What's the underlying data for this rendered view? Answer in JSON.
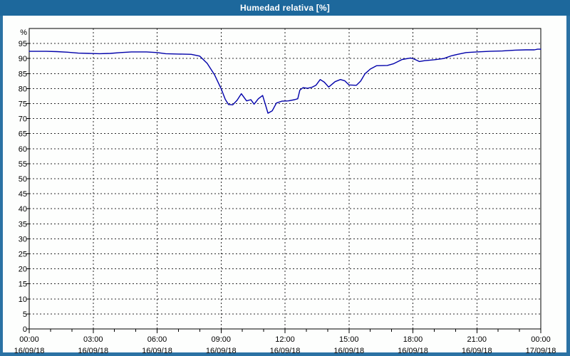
{
  "window": {
    "title": "Humedad relativa [%]"
  },
  "colors": {
    "titlebar_bg": "#1d689c",
    "frame_bg": "#2b72a4",
    "panel_bg": "#fdfefd",
    "title_text": "#ffffff",
    "axis_text": "#000000",
    "plot_border": "#000000",
    "gridline": "#2a2a2a",
    "line": "#0000aa"
  },
  "chart_data": {
    "type": "line",
    "title": "Humedad relativa [%]",
    "ylabel": "%",
    "xlabel": "",
    "ylim": [
      0,
      100
    ],
    "ytick_step": 5,
    "yticks": [
      0,
      5,
      10,
      15,
      20,
      25,
      30,
      35,
      40,
      45,
      50,
      55,
      60,
      65,
      70,
      75,
      80,
      85,
      90,
      95
    ],
    "xlim_hours": [
      0,
      24
    ],
    "minor_xtick_every_hours": 1,
    "grid": true,
    "legend_position": "none",
    "xticks": [
      {
        "hour": 0,
        "time": "00:00",
        "date": "16/09/18"
      },
      {
        "hour": 3,
        "time": "03:00",
        "date": "16/09/18"
      },
      {
        "hour": 6,
        "time": "06:00",
        "date": "16/09/18"
      },
      {
        "hour": 9,
        "time": "09:00",
        "date": "16/09/18"
      },
      {
        "hour": 12,
        "time": "12:00",
        "date": "16/09/18"
      },
      {
        "hour": 15,
        "time": "15:00",
        "date": "16/09/18"
      },
      {
        "hour": 18,
        "time": "18:00",
        "date": "16/09/18"
      },
      {
        "hour": 21,
        "time": "21:00",
        "date": "16/09/18"
      },
      {
        "hour": 24,
        "time": "00:00",
        "date": "17/09/18"
      }
    ],
    "series": [
      {
        "name": "Humedad relativa",
        "unit": "%",
        "color": "#0000aa",
        "points": [
          [
            0,
            92.4
          ],
          [
            0.8,
            92.4
          ],
          [
            1.3,
            92.3
          ],
          [
            1.8,
            92.1
          ],
          [
            2.3,
            91.8
          ],
          [
            2.8,
            91.7
          ],
          [
            3.3,
            91.6
          ],
          [
            3.8,
            91.7
          ],
          [
            4.3,
            92.0
          ],
          [
            4.8,
            92.2
          ],
          [
            5.5,
            92.2
          ],
          [
            6.0,
            92.0
          ],
          [
            6.4,
            91.6
          ],
          [
            7.0,
            91.5
          ],
          [
            7.6,
            91.4
          ],
          [
            8.0,
            90.8
          ],
          [
            8.35,
            88.4
          ],
          [
            8.7,
            84.5
          ],
          [
            9.0,
            80.0
          ],
          [
            9.2,
            76.4
          ],
          [
            9.35,
            74.7
          ],
          [
            9.55,
            74.6
          ],
          [
            9.75,
            76.1
          ],
          [
            9.95,
            78.3
          ],
          [
            10.2,
            75.9
          ],
          [
            10.4,
            76.3
          ],
          [
            10.55,
            74.8
          ],
          [
            10.75,
            76.6
          ],
          [
            10.95,
            77.7
          ],
          [
            11.1,
            74.2
          ],
          [
            11.2,
            71.8
          ],
          [
            11.4,
            72.6
          ],
          [
            11.6,
            75.2
          ],
          [
            11.85,
            75.8
          ],
          [
            12.15,
            75.9
          ],
          [
            12.45,
            76.3
          ],
          [
            12.6,
            76.6
          ],
          [
            12.7,
            79.5
          ],
          [
            12.85,
            80.3
          ],
          [
            13.05,
            80.1
          ],
          [
            13.25,
            80.4
          ],
          [
            13.45,
            81.1
          ],
          [
            13.65,
            83.0
          ],
          [
            13.85,
            82.1
          ],
          [
            14.05,
            80.5
          ],
          [
            14.35,
            82.3
          ],
          [
            14.6,
            83.0
          ],
          [
            14.8,
            82.6
          ],
          [
            15.0,
            81.2
          ],
          [
            15.35,
            81.1
          ],
          [
            15.55,
            82.5
          ],
          [
            15.75,
            84.9
          ],
          [
            16.0,
            86.5
          ],
          [
            16.3,
            87.6
          ],
          [
            16.8,
            87.7
          ],
          [
            17.1,
            88.3
          ],
          [
            17.5,
            89.7
          ],
          [
            17.9,
            90.2
          ],
          [
            18.1,
            89.7
          ],
          [
            18.3,
            89.0
          ],
          [
            18.55,
            89.3
          ],
          [
            19.0,
            89.6
          ],
          [
            19.45,
            90.0
          ],
          [
            19.8,
            90.9
          ],
          [
            20.1,
            91.4
          ],
          [
            20.5,
            92.0
          ],
          [
            21.0,
            92.2
          ],
          [
            21.6,
            92.4
          ],
          [
            22.2,
            92.5
          ],
          [
            22.8,
            92.8
          ],
          [
            23.3,
            92.9
          ],
          [
            23.7,
            92.9
          ],
          [
            23.85,
            93.1
          ],
          [
            24,
            93.1
          ]
        ]
      }
    ]
  }
}
